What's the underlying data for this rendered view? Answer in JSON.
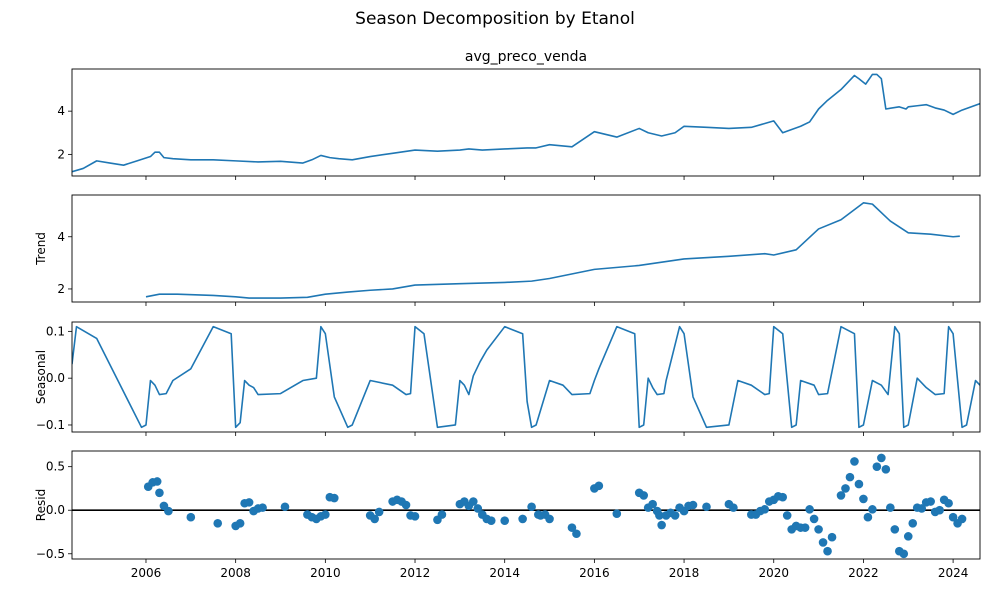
{
  "figure": {
    "suptitle": "Season Decomposition by Etanol"
  },
  "chart_data": [
    {
      "type": "line",
      "panel": "observed",
      "title": "avg_preco_venda",
      "ylabel": "",
      "xlim": [
        2004.35,
        2024.6
      ],
      "ylim": [
        1.0,
        5.95
      ],
      "yticks": [
        2,
        4
      ],
      "xticks": [
        "2006",
        "2008",
        "2010",
        "2012",
        "2014",
        "2016",
        "2018",
        "2020",
        "2022",
        "2024"
      ],
      "color": "#1f77b4",
      "x": [
        2004.35,
        2004.6,
        2004.9,
        2005.2,
        2005.5,
        2005.8,
        2006.1,
        2006.2,
        2006.3,
        2006.4,
        2006.6,
        2007.0,
        2007.5,
        2008.0,
        2008.5,
        2009.0,
        2009.5,
        2009.7,
        2009.9,
        2010.1,
        2010.3,
        2010.6,
        2011.0,
        2011.5,
        2012.0,
        2012.5,
        2013.0,
        2013.2,
        2013.5,
        2014.0,
        2014.5,
        2014.7,
        2015.0,
        2015.5,
        2016.0,
        2016.5,
        2017.0,
        2017.2,
        2017.5,
        2017.8,
        2018.0,
        2018.5,
        2019.0,
        2019.5,
        2020.0,
        2020.2,
        2020.4,
        2020.6,
        2020.8,
        2021.0,
        2021.2,
        2021.5,
        2021.8,
        2021.9,
        2022.05,
        2022.2,
        2022.3,
        2022.4,
        2022.5,
        2022.8,
        2022.95,
        2023.0,
        2023.2,
        2023.4,
        2023.6,
        2023.8,
        2024.0,
        2024.2,
        2024.4,
        2024.6
      ],
      "y": [
        1.2,
        1.35,
        1.7,
        1.6,
        1.5,
        1.7,
        1.9,
        2.1,
        2.1,
        1.85,
        1.8,
        1.75,
        1.75,
        1.7,
        1.65,
        1.68,
        1.6,
        1.75,
        1.95,
        1.85,
        1.8,
        1.75,
        1.9,
        2.05,
        2.2,
        2.15,
        2.2,
        2.25,
        2.2,
        2.25,
        2.3,
        2.3,
        2.45,
        2.35,
        3.05,
        2.8,
        3.2,
        3.0,
        2.85,
        3.0,
        3.3,
        3.25,
        3.2,
        3.25,
        3.55,
        3.0,
        3.15,
        3.3,
        3.5,
        4.1,
        4.5,
        5.0,
        5.65,
        5.5,
        5.25,
        5.7,
        5.7,
        5.5,
        4.1,
        4.2,
        4.1,
        4.2,
        4.25,
        4.3,
        4.15,
        4.05,
        3.85,
        4.05,
        4.2,
        4.35
      ]
    },
    {
      "type": "line",
      "panel": "trend",
      "title": "",
      "ylabel": "Trend",
      "xlim": [
        2004.35,
        2024.6
      ],
      "ylim": [
        1.5,
        5.6
      ],
      "yticks": [
        2,
        4
      ],
      "color": "#1f77b4",
      "x": [
        2006.0,
        2006.3,
        2006.7,
        2007.5,
        2008.0,
        2008.3,
        2009.0,
        2009.6,
        2010.0,
        2010.5,
        2011.0,
        2011.5,
        2012.0,
        2013.0,
        2014.0,
        2014.6,
        2015.0,
        2016.0,
        2017.0,
        2018.0,
        2019.0,
        2019.8,
        2020.0,
        2020.5,
        2021.0,
        2021.5,
        2022.0,
        2022.2,
        2022.6,
        2023.0,
        2023.5,
        2024.0,
        2024.15
      ],
      "y": [
        1.7,
        1.8,
        1.8,
        1.75,
        1.7,
        1.65,
        1.65,
        1.68,
        1.8,
        1.88,
        1.95,
        2.0,
        2.15,
        2.2,
        2.25,
        2.3,
        2.4,
        2.75,
        2.9,
        3.15,
        3.25,
        3.35,
        3.3,
        3.5,
        4.3,
        4.65,
        5.3,
        5.25,
        4.6,
        4.15,
        4.1,
        4.0,
        4.02
      ]
    },
    {
      "type": "line",
      "panel": "seasonal",
      "title": "",
      "ylabel": "Seasonal",
      "xlim": [
        2004.35,
        2024.6
      ],
      "ylim": [
        -0.115,
        0.12
      ],
      "yticks": [
        -0.1,
        0.0,
        0.1
      ],
      "ytick_labels": [
        "−0.1",
        "0.0",
        "0.1"
      ],
      "color": "#1f77b4",
      "x": [
        2004.35,
        2004.45,
        2004.9,
        2005.9,
        2006.0,
        2006.1,
        2006.2,
        2006.3,
        2006.45,
        2006.6,
        2007.0,
        2007.5,
        2007.9,
        2008.0,
        2008.1,
        2008.2,
        2008.3,
        2008.4,
        2008.5,
        2009.0,
        2009.5,
        2009.8,
        2009.9,
        2010.0,
        2010.2,
        2010.5,
        2010.6,
        2011.0,
        2011.5,
        2011.8,
        2011.9,
        2012.0,
        2012.2,
        2012.5,
        2012.9,
        2013.0,
        2013.1,
        2013.2,
        2013.3,
        2013.45,
        2013.6,
        2014.0,
        2014.4,
        2014.5,
        2014.6,
        2014.7,
        2015.0,
        2015.3,
        2015.5,
        2015.9,
        2016.0,
        2016.1,
        2016.5,
        2016.9,
        2017.0,
        2017.1,
        2017.2,
        2017.3,
        2017.4,
        2017.55,
        2017.6,
        2017.9,
        2018.0,
        2018.2,
        2018.5,
        2019.0,
        2019.2,
        2019.5,
        2019.8,
        2019.9,
        2020.0,
        2020.2,
        2020.4,
        2020.5,
        2020.6,
        2020.9,
        2021.0,
        2021.2,
        2021.5,
        2021.8,
        2021.9,
        2022.0,
        2022.2,
        2022.4,
        2022.55,
        2022.7,
        2022.8,
        2022.9,
        2023.0,
        2023.2,
        2023.4,
        2023.6,
        2023.8,
        2023.9,
        2024.0,
        2024.2,
        2024.3,
        2024.5,
        2024.6
      ],
      "y": [
        0.03,
        0.11,
        0.085,
        -0.105,
        -0.1,
        -0.005,
        -0.015,
        -0.035,
        -0.033,
        -0.005,
        0.02,
        0.11,
        0.095,
        -0.105,
        -0.095,
        -0.005,
        -0.015,
        -0.02,
        -0.035,
        -0.033,
        -0.005,
        0.0,
        0.11,
        0.095,
        -0.04,
        -0.105,
        -0.1,
        -0.005,
        -0.015,
        -0.035,
        -0.033,
        0.11,
        0.095,
        -0.105,
        -0.1,
        -0.005,
        -0.015,
        -0.035,
        0.005,
        0.035,
        0.06,
        0.11,
        0.095,
        -0.05,
        -0.105,
        -0.1,
        -0.005,
        -0.015,
        -0.035,
        -0.033,
        -0.005,
        0.02,
        0.11,
        0.095,
        -0.105,
        -0.1,
        0.0,
        -0.02,
        -0.035,
        -0.033,
        -0.005,
        0.11,
        0.095,
        -0.04,
        -0.105,
        -0.1,
        -0.005,
        -0.015,
        -0.035,
        -0.033,
        0.11,
        0.095,
        -0.105,
        -0.1,
        -0.005,
        -0.015,
        -0.035,
        -0.033,
        0.11,
        0.095,
        -0.105,
        -0.1,
        -0.005,
        -0.015,
        -0.035,
        0.11,
        0.095,
        -0.105,
        -0.1,
        0.0,
        -0.02,
        -0.035,
        -0.033,
        0.11,
        0.095,
        -0.105,
        -0.1,
        -0.005,
        -0.015
      ]
    },
    {
      "type": "scatter",
      "panel": "resid",
      "title": "",
      "ylabel": "Resid",
      "xlim": [
        2004.35,
        2024.6
      ],
      "ylim": [
        -0.56,
        0.68
      ],
      "yticks": [
        -0.5,
        0.0,
        0.5
      ],
      "ytick_labels": [
        "−0.5",
        "0.0",
        "0.5"
      ],
      "baseline": 0,
      "color": "#1f77b4",
      "x": [
        2006.05,
        2006.15,
        2006.25,
        2006.3,
        2006.4,
        2006.5,
        2007.0,
        2007.6,
        2008.0,
        2008.1,
        2008.2,
        2008.3,
        2008.4,
        2008.5,
        2008.6,
        2009.1,
        2009.6,
        2009.7,
        2009.8,
        2009.9,
        2010.0,
        2010.1,
        2010.2,
        2011.0,
        2011.1,
        2011.2,
        2011.5,
        2011.6,
        2011.7,
        2011.8,
        2011.9,
        2012.0,
        2012.5,
        2012.6,
        2013.0,
        2013.1,
        2013.2,
        2013.3,
        2013.4,
        2013.5,
        2013.6,
        2013.7,
        2014.0,
        2014.4,
        2014.6,
        2014.75,
        2014.8,
        2014.9,
        2015.0,
        2015.5,
        2015.6,
        2016.0,
        2016.1,
        2016.5,
        2017.0,
        2017.1,
        2017.2,
        2017.3,
        2017.4,
        2017.45,
        2017.5,
        2017.6,
        2017.7,
        2017.8,
        2017.9,
        2018.0,
        2018.1,
        2018.2,
        2018.5,
        2019.0,
        2019.1,
        2019.5,
        2019.6,
        2019.7,
        2019.8,
        2019.9,
        2020.0,
        2020.1,
        2020.2,
        2020.3,
        2020.4,
        2020.5,
        2020.6,
        2020.7,
        2020.8,
        2020.9,
        2021.0,
        2021.1,
        2021.2,
        2021.3,
        2021.5,
        2021.6,
        2021.7,
        2021.8,
        2021.9,
        2022.0,
        2022.1,
        2022.2,
        2022.3,
        2022.4,
        2022.5,
        2022.6,
        2022.7,
        2022.8,
        2022.9,
        2023.0,
        2023.1,
        2023.2,
        2023.3,
        2023.4,
        2023.5,
        2023.6,
        2023.7,
        2023.8,
        2023.9,
        2024.0,
        2024.1,
        2024.2
      ],
      "y": [
        0.27,
        0.32,
        0.33,
        0.2,
        0.05,
        -0.01,
        -0.08,
        -0.15,
        -0.18,
        -0.15,
        0.08,
        0.09,
        -0.01,
        0.02,
        0.03,
        0.04,
        -0.05,
        -0.08,
        -0.1,
        -0.07,
        -0.05,
        0.15,
        0.14,
        -0.06,
        -0.1,
        -0.02,
        0.1,
        0.12,
        0.1,
        0.06,
        -0.06,
        -0.07,
        -0.11,
        -0.05,
        0.07,
        0.1,
        0.05,
        0.1,
        0.02,
        -0.05,
        -0.1,
        -0.12,
        -0.12,
        -0.1,
        0.04,
        -0.05,
        -0.06,
        -0.05,
        -0.1,
        -0.2,
        -0.27,
        0.25,
        0.28,
        -0.04,
        0.2,
        0.17,
        0.03,
        0.07,
        -0.01,
        -0.06,
        -0.17,
        -0.06,
        -0.03,
        -0.06,
        0.03,
        -0.01,
        0.05,
        0.06,
        0.04,
        0.07,
        0.03,
        -0.05,
        -0.05,
        -0.01,
        0.01,
        0.1,
        0.12,
        0.16,
        0.15,
        -0.06,
        -0.22,
        -0.18,
        -0.2,
        -0.2,
        0.01,
        -0.1,
        -0.22,
        -0.37,
        -0.47,
        -0.31,
        0.17,
        0.25,
        0.38,
        0.56,
        0.3,
        0.13,
        -0.08,
        0.01,
        0.5,
        0.6,
        0.47,
        0.03,
        -0.22,
        -0.47,
        -0.5,
        -0.3,
        -0.15,
        0.03,
        0.02,
        0.09,
        0.1,
        -0.02,
        0.0,
        0.12,
        0.08,
        -0.08,
        -0.15,
        -0.1
      ]
    }
  ]
}
